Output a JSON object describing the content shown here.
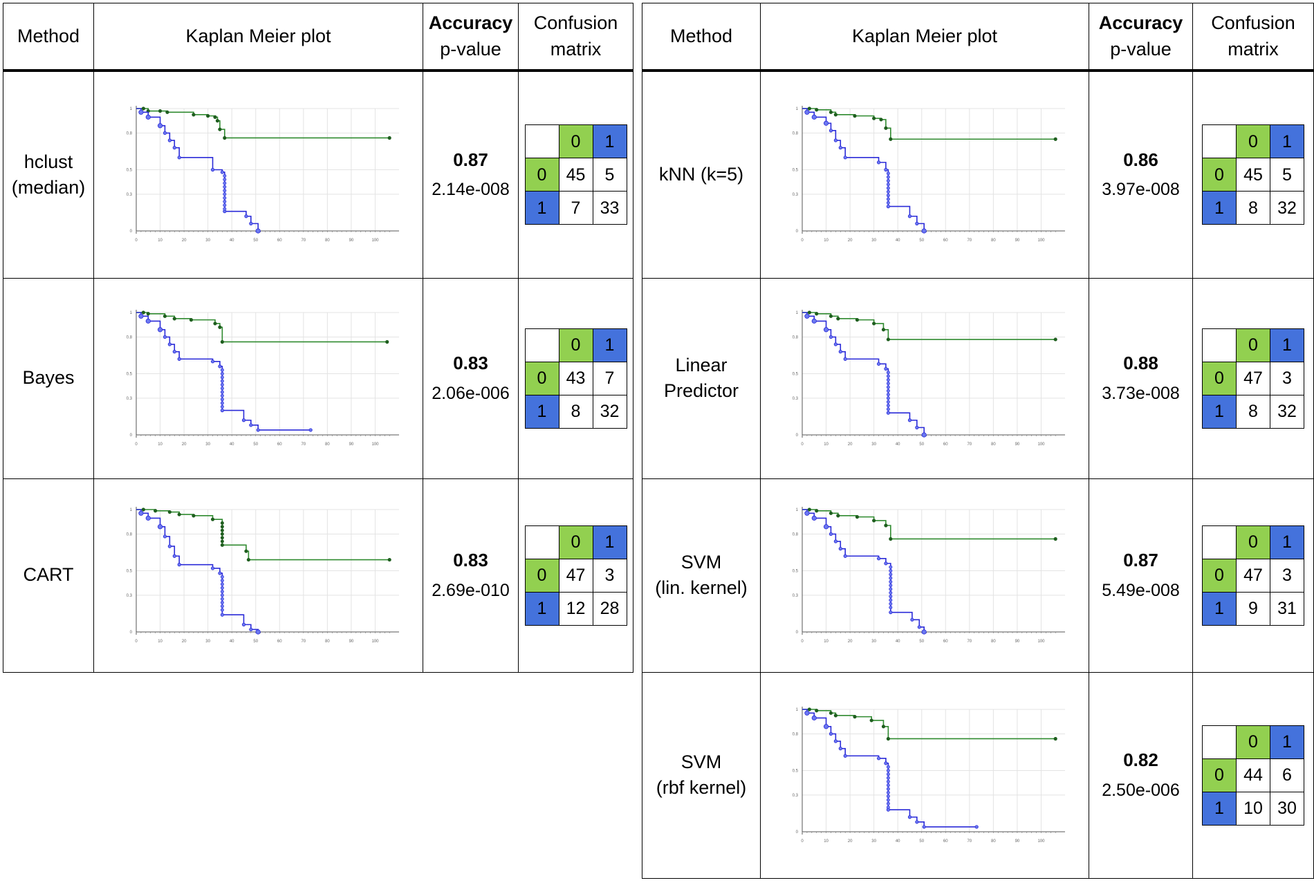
{
  "headers": {
    "method": "Method",
    "km": "Kaplan Meier plot",
    "acc": "Accuracy",
    "pval": "p-value",
    "cm_line1": "Confusion",
    "cm_line2": "matrix"
  },
  "colors": {
    "group0": "#2f8a2f",
    "group1": "#2a2ad8",
    "cell0": "#92d050",
    "cell1": "#4472dc"
  },
  "cm_labels": {
    "c0": "0",
    "c1": "1"
  },
  "km_axis": {
    "xticks": [
      0,
      10,
      20,
      30,
      40,
      50,
      60,
      70,
      80,
      90,
      100
    ],
    "yticks": [
      0,
      0.3,
      0.5,
      0.8,
      1
    ],
    "ytick_labels": [
      "0",
      "0.3",
      "0.5",
      "0.8",
      "1"
    ]
  },
  "chart_data": [
    {
      "type": "line",
      "method": "hclust\n(median)",
      "accuracy": "0.87",
      "p_value": "2.14e-008",
      "confusion_matrix": [
        [
          "45",
          "5"
        ],
        [
          "7",
          "33"
        ]
      ],
      "xlim": [
        0,
        110
      ],
      "ylim": [
        0,
        1
      ],
      "series": [
        {
          "color": "#2f8a2f",
          "x": [
            0,
            3,
            5,
            10,
            13,
            24,
            30,
            33,
            34,
            35,
            37,
            106
          ],
          "y": [
            1,
            1,
            0.98,
            0.98,
            0.97,
            0.95,
            0.94,
            0.93,
            0.9,
            0.83,
            0.76,
            0.76
          ]
        },
        {
          "color": "#2a2ad8",
          "x": [
            0,
            2,
            5,
            10,
            12,
            14,
            16,
            18,
            32,
            36,
            37,
            46,
            48,
            51
          ],
          "y": [
            1,
            0.97,
            0.93,
            0.86,
            0.8,
            0.74,
            0.68,
            0.6,
            0.5,
            0.48,
            0.16,
            0.12,
            0.06,
            0
          ]
        }
      ]
    },
    {
      "type": "line",
      "method": "kNN (k=5)",
      "accuracy": "0.86",
      "p_value": "3.97e-008",
      "confusion_matrix": [
        [
          "45",
          "5"
        ],
        [
          "8",
          "32"
        ]
      ],
      "xlim": [
        0,
        110
      ],
      "ylim": [
        0,
        1
      ],
      "series": [
        {
          "color": "#2f8a2f",
          "x": [
            0,
            3,
            6,
            12,
            14,
            22,
            30,
            33,
            35,
            37,
            106
          ],
          "y": [
            1,
            1,
            0.99,
            0.97,
            0.95,
            0.94,
            0.92,
            0.91,
            0.84,
            0.75,
            0.75
          ]
        },
        {
          "color": "#2a2ad8",
          "x": [
            0,
            2,
            5,
            10,
            12,
            14,
            16,
            18,
            32,
            35,
            36,
            45,
            48,
            51
          ],
          "y": [
            1,
            0.97,
            0.93,
            0.88,
            0.82,
            0.74,
            0.68,
            0.6,
            0.56,
            0.5,
            0.2,
            0.12,
            0.06,
            0
          ]
        }
      ]
    },
    {
      "type": "line",
      "method": "Bayes",
      "accuracy": "0.83",
      "p_value": "2.06e-006",
      "confusion_matrix": [
        [
          "43",
          "7"
        ],
        [
          "8",
          "32"
        ]
      ],
      "xlim": [
        0,
        110
      ],
      "ylim": [
        0,
        1
      ],
      "series": [
        {
          "color": "#2f8a2f",
          "x": [
            0,
            3,
            5,
            12,
            16,
            23,
            33,
            35,
            36,
            105
          ],
          "y": [
            1,
            1,
            0.99,
            0.97,
            0.95,
            0.94,
            0.91,
            0.88,
            0.76,
            0.76
          ]
        },
        {
          "color": "#2a2ad8",
          "x": [
            0,
            2,
            5,
            10,
            12,
            14,
            16,
            18,
            32,
            35,
            36,
            45,
            48,
            51,
            73
          ],
          "y": [
            1,
            0.97,
            0.93,
            0.86,
            0.8,
            0.74,
            0.68,
            0.62,
            0.6,
            0.56,
            0.2,
            0.12,
            0.08,
            0.04,
            0.04
          ]
        }
      ]
    },
    {
      "type": "line",
      "method": "Linear\nPredictor",
      "accuracy": "0.88",
      "p_value": "3.73e-008",
      "confusion_matrix": [
        [
          "47",
          "3"
        ],
        [
          "8",
          "32"
        ]
      ],
      "xlim": [
        0,
        110
      ],
      "ylim": [
        0,
        1
      ],
      "series": [
        {
          "color": "#2f8a2f",
          "x": [
            0,
            3,
            6,
            12,
            15,
            23,
            30,
            34,
            36,
            106
          ],
          "y": [
            1,
            1,
            0.99,
            0.97,
            0.95,
            0.94,
            0.91,
            0.86,
            0.78,
            0.78
          ]
        },
        {
          "color": "#2a2ad8",
          "x": [
            0,
            2,
            5,
            10,
            12,
            14,
            16,
            18,
            32,
            35,
            36,
            45,
            48,
            51
          ],
          "y": [
            1,
            0.97,
            0.93,
            0.86,
            0.8,
            0.74,
            0.68,
            0.62,
            0.58,
            0.54,
            0.18,
            0.12,
            0.06,
            0
          ]
        }
      ]
    },
    {
      "type": "line",
      "method": "CART",
      "accuracy": "0.83",
      "p_value": "2.69e-010",
      "confusion_matrix": [
        [
          "47",
          "3"
        ],
        [
          "12",
          "28"
        ]
      ],
      "xlim": [
        0,
        110
      ],
      "ylim": [
        0,
        1
      ],
      "series": [
        {
          "color": "#2f8a2f",
          "x": [
            0,
            3,
            8,
            14,
            18,
            24,
            32,
            36,
            46,
            47,
            106
          ],
          "y": [
            1,
            1,
            0.99,
            0.98,
            0.96,
            0.95,
            0.92,
            0.71,
            0.66,
            0.59,
            0.59
          ]
        },
        {
          "color": "#2a2ad8",
          "x": [
            0,
            2,
            5,
            10,
            12,
            14,
            16,
            18,
            32,
            35,
            36,
            45,
            48,
            51
          ],
          "y": [
            1,
            0.97,
            0.93,
            0.86,
            0.78,
            0.7,
            0.62,
            0.55,
            0.52,
            0.48,
            0.14,
            0.06,
            0.02,
            0
          ]
        }
      ]
    },
    {
      "type": "line",
      "method": "SVM\n(lin. kernel)",
      "accuracy": "0.87",
      "p_value": "5.49e-008",
      "confusion_matrix": [
        [
          "47",
          "3"
        ],
        [
          "9",
          "31"
        ]
      ],
      "xlim": [
        0,
        110
      ],
      "ylim": [
        0,
        1
      ],
      "series": [
        {
          "color": "#2f8a2f",
          "x": [
            0,
            3,
            6,
            12,
            15,
            23,
            30,
            35,
            37,
            106
          ],
          "y": [
            1,
            1,
            0.99,
            0.97,
            0.95,
            0.94,
            0.91,
            0.87,
            0.76,
            0.76
          ]
        },
        {
          "color": "#2a2ad8",
          "x": [
            0,
            2,
            5,
            10,
            12,
            14,
            16,
            18,
            32,
            35,
            37,
            46,
            49,
            51
          ],
          "y": [
            1,
            0.97,
            0.93,
            0.86,
            0.8,
            0.74,
            0.68,
            0.62,
            0.6,
            0.56,
            0.16,
            0.1,
            0.04,
            0
          ]
        }
      ]
    },
    {
      "type": "line",
      "method": "SVM\n(rbf kernel)",
      "accuracy": "0.82",
      "p_value": "2.50e-006",
      "confusion_matrix": [
        [
          "44",
          "6"
        ],
        [
          "10",
          "30"
        ]
      ],
      "xlim": [
        0,
        110
      ],
      "ylim": [
        0,
        1
      ],
      "series": [
        {
          "color": "#2f8a2f",
          "x": [
            0,
            3,
            6,
            12,
            14,
            22,
            29,
            34,
            36,
            106
          ],
          "y": [
            1,
            1,
            0.99,
            0.97,
            0.95,
            0.94,
            0.91,
            0.86,
            0.76,
            0.76
          ]
        },
        {
          "color": "#2a2ad8",
          "x": [
            0,
            2,
            5,
            10,
            12,
            14,
            16,
            18,
            32,
            35,
            36,
            45,
            48,
            51,
            73
          ],
          "y": [
            1,
            0.97,
            0.93,
            0.86,
            0.8,
            0.74,
            0.68,
            0.62,
            0.6,
            0.56,
            0.18,
            0.12,
            0.08,
            0.04,
            0.04
          ]
        }
      ]
    }
  ]
}
